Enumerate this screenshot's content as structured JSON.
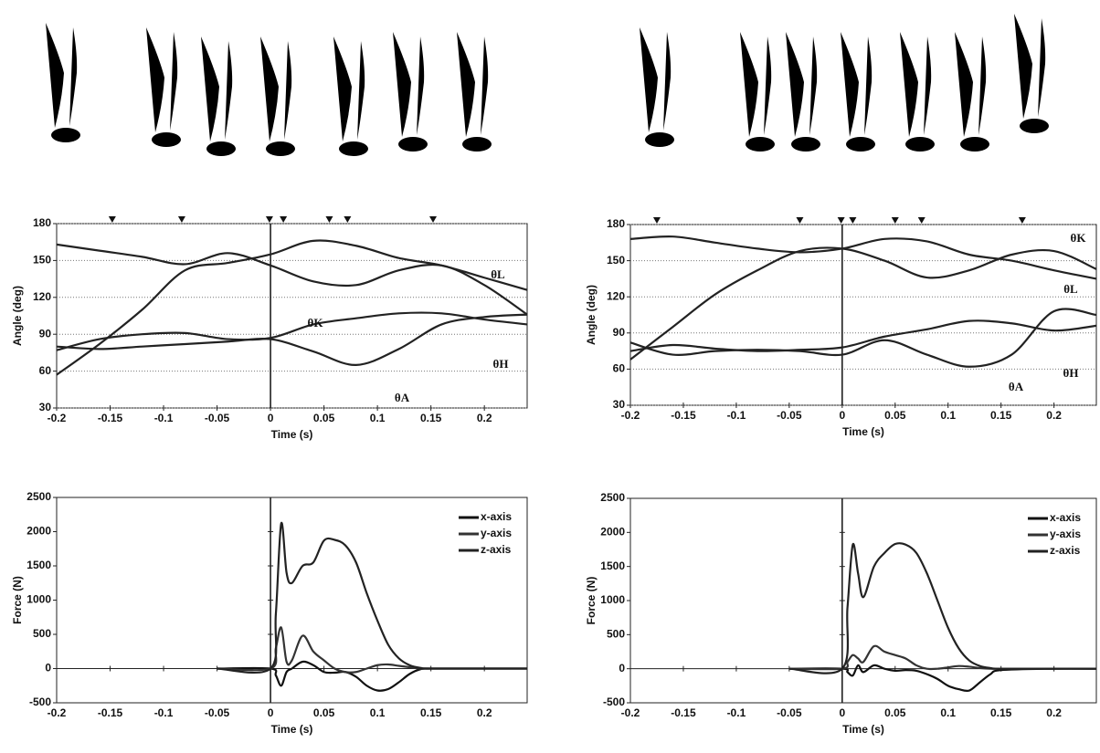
{
  "chart_data": [
    {
      "type": "line",
      "ylabel": "Angle (deg)",
      "xlabel": "Time (s)",
      "x": [
        -0.2,
        -0.16,
        -0.12,
        -0.08,
        -0.04,
        0,
        0.04,
        0.08,
        0.12,
        0.16,
        0.2,
        0.24
      ],
      "series": [
        {
          "name": "θK",
          "color": "#222222",
          "values": [
            163,
            158,
            153,
            147,
            156,
            146,
            133,
            130,
            142,
            146,
            130,
            106
          ]
        },
        {
          "name": "θL",
          "color": "#222222",
          "values": [
            57,
            82,
            110,
            142,
            148,
            155,
            166,
            162,
            152,
            146,
            136,
            126
          ]
        },
        {
          "name": "θH",
          "color": "#222222",
          "values": [
            77,
            86,
            90,
            91,
            86,
            87,
            98,
            103,
            107,
            107,
            102,
            98
          ]
        },
        {
          "name": "θA",
          "color": "#222222",
          "values": [
            80,
            78,
            80,
            82,
            84,
            86,
            76,
            65,
            78,
            98,
            104,
            106
          ]
        }
      ],
      "events": [
        -0.148,
        -0.083,
        -0.001,
        0.012,
        0.055,
        0.072,
        0.152
      ],
      "xlim": [
        -0.2,
        0.24
      ],
      "xticks": [
        -0.2,
        -0.15,
        -0.1,
        -0.05,
        0,
        0.05,
        0.1,
        0.15,
        0.2
      ],
      "ylim": [
        30,
        180
      ],
      "yticks": [
        30,
        60,
        90,
        120,
        150,
        180
      ],
      "grid": true,
      "legend": false
    },
    {
      "type": "line",
      "ylabel": "Angle (deg)",
      "xlabel": "Time (s)",
      "x": [
        -0.2,
        -0.16,
        -0.12,
        -0.08,
        -0.04,
        0,
        0.04,
        0.08,
        0.12,
        0.16,
        0.2,
        0.24
      ],
      "series": [
        {
          "name": "θK",
          "color": "#222222",
          "values": [
            68,
            95,
            122,
            142,
            158,
            160,
            150,
            136,
            142,
            155,
            158,
            143
          ]
        },
        {
          "name": "θL",
          "color": "#222222",
          "values": [
            168,
            170,
            165,
            160,
            157,
            160,
            168,
            166,
            155,
            150,
            142,
            135
          ]
        },
        {
          "name": "θH",
          "color": "#222222",
          "values": [
            75,
            80,
            77,
            75,
            76,
            78,
            87,
            93,
            100,
            98,
            92,
            96
          ]
        },
        {
          "name": "θA",
          "color": "#222222",
          "values": [
            82,
            72,
            75,
            76,
            75,
            72,
            84,
            72,
            62,
            72,
            108,
            105
          ]
        }
      ],
      "events": [
        -0.175,
        -0.04,
        -0.001,
        0.01,
        0.05,
        0.075,
        0.17
      ],
      "xlim": [
        -0.2,
        0.24
      ],
      "xticks": [
        -0.2,
        -0.15,
        -0.1,
        -0.05,
        0,
        0.05,
        0.1,
        0.15,
        0.2
      ],
      "ylim": [
        30,
        180
      ],
      "yticks": [
        30,
        60,
        90,
        120,
        150,
        180
      ],
      "grid": true,
      "legend": false
    },
    {
      "type": "line",
      "ylabel": "Force (N)",
      "xlabel": "Time (s)",
      "x": [
        -0.05,
        0,
        0.005,
        0.01,
        0.015,
        0.02,
        0.03,
        0.04,
        0.05,
        0.06,
        0.07,
        0.08,
        0.09,
        0.1,
        0.11,
        0.12,
        0.13,
        0.14,
        0.15,
        0.2,
        0.24
      ],
      "series": [
        {
          "name": "x-axis",
          "color": "#111111",
          "values": [
            0,
            0,
            -100,
            -250,
            -50,
            0,
            100,
            50,
            -50,
            -60,
            -50,
            -120,
            -250,
            -320,
            -300,
            -200,
            -80,
            -10,
            0,
            0,
            0
          ]
        },
        {
          "name": "y-axis",
          "color": "#333333",
          "values": [
            0,
            0,
            300,
            600,
            100,
            120,
            480,
            250,
            120,
            0,
            -50,
            -50,
            0,
            50,
            60,
            40,
            20,
            0,
            0,
            0,
            0
          ]
        },
        {
          "name": "z-axis",
          "color": "#222222",
          "values": [
            0,
            0,
            800,
            2120,
            1400,
            1250,
            1500,
            1550,
            1870,
            1880,
            1800,
            1550,
            1100,
            700,
            350,
            150,
            50,
            10,
            0,
            0,
            0
          ]
        }
      ],
      "xlim": [
        -0.2,
        0.24
      ],
      "xticks": [
        -0.2,
        -0.15,
        -0.1,
        -0.05,
        0,
        0.05,
        0.1,
        0.15,
        0.2
      ],
      "ylim": [
        -500,
        2500
      ],
      "yticks": [
        -500,
        0,
        500,
        1000,
        1500,
        2000,
        2500
      ],
      "grid": false,
      "legend": "upper right"
    },
    {
      "type": "line",
      "ylabel": "Force (N)",
      "xlabel": "Time (s)",
      "x": [
        -0.05,
        0,
        0.005,
        0.01,
        0.015,
        0.02,
        0.03,
        0.04,
        0.05,
        0.06,
        0.07,
        0.08,
        0.09,
        0.1,
        0.11,
        0.12,
        0.13,
        0.14,
        0.15,
        0.2,
        0.24
      ],
      "series": [
        {
          "name": "x-axis",
          "color": "#111111",
          "values": [
            0,
            0,
            -50,
            -100,
            50,
            -50,
            50,
            0,
            -30,
            -20,
            -30,
            -80,
            -150,
            -250,
            -300,
            -320,
            -200,
            -80,
            -20,
            0,
            0
          ]
        },
        {
          "name": "y-axis",
          "color": "#333333",
          "values": [
            0,
            0,
            100,
            200,
            150,
            100,
            330,
            250,
            200,
            150,
            50,
            0,
            0,
            20,
            40,
            30,
            10,
            0,
            0,
            0,
            0
          ]
        },
        {
          "name": "z-axis",
          "color": "#222222",
          "values": [
            0,
            0,
            900,
            1820,
            1400,
            1050,
            1500,
            1700,
            1830,
            1820,
            1700,
            1400,
            1000,
            600,
            300,
            120,
            40,
            10,
            0,
            0,
            0
          ]
        }
      ],
      "xlim": [
        -0.2,
        0.24
      ],
      "xticks": [
        -0.2,
        -0.15,
        -0.1,
        -0.05,
        0,
        0.05,
        0.1,
        0.15,
        0.2
      ],
      "ylim": [
        -500,
        2500
      ],
      "yticks": [
        -500,
        0,
        500,
        1000,
        1500,
        2000,
        2500
      ],
      "grid": false,
      "legend": "upper right"
    }
  ]
}
